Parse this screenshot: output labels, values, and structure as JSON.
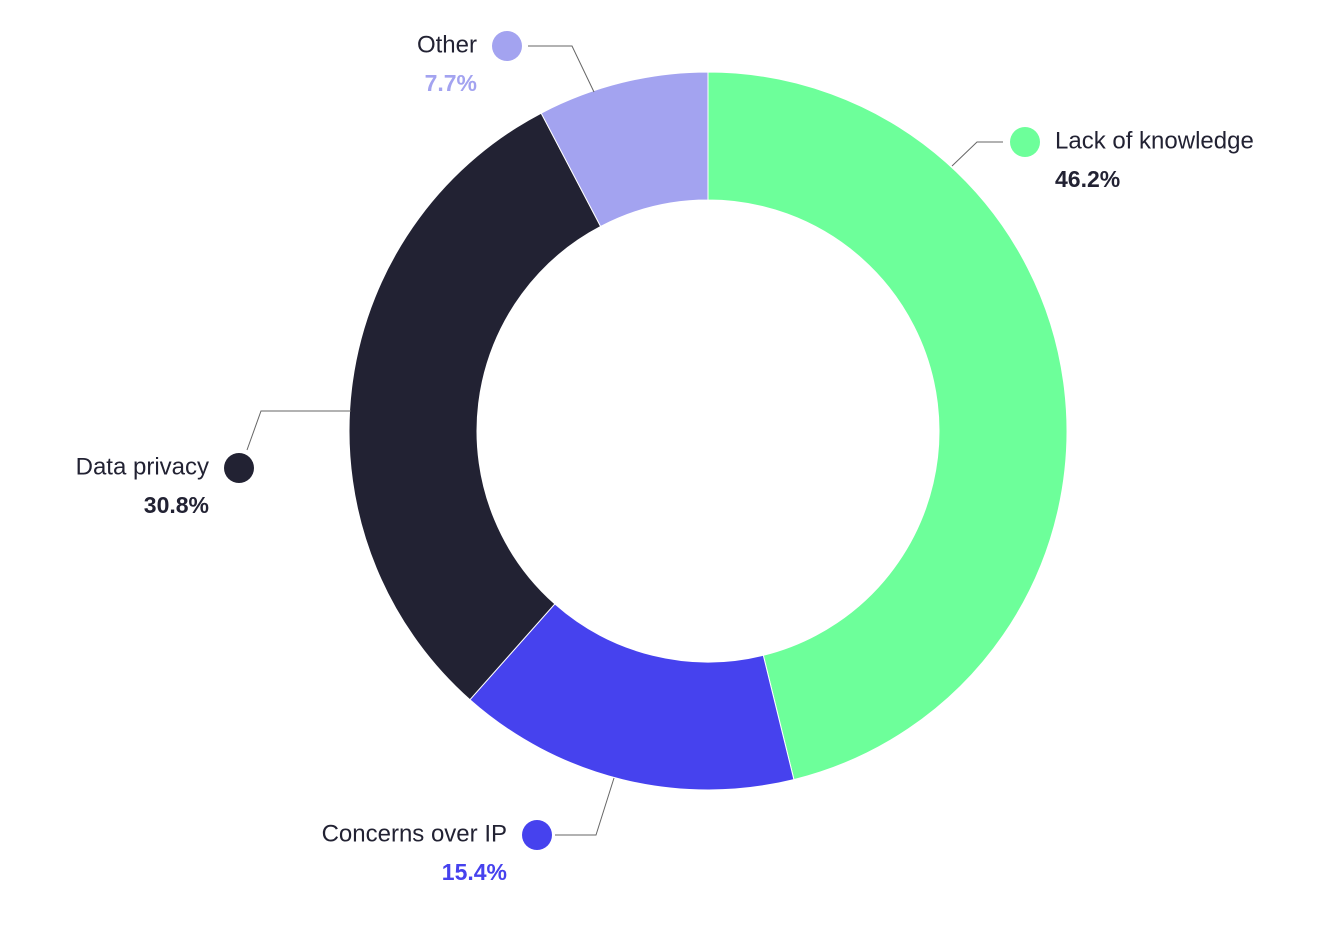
{
  "chart_data": {
    "type": "donut",
    "categories": [
      "Lack of knowledge",
      "Concerns over IP",
      "Data privacy",
      "Other"
    ],
    "values": [
      46.2,
      15.4,
      30.8,
      7.7
    ],
    "value_labels": [
      "46.2%",
      "15.4%",
      "30.8%",
      "7.7%"
    ],
    "colors": [
      "#6dff9a",
      "#4642ee",
      "#222233",
      "#a3a3f0"
    ],
    "value_label_colors": [
      "#222233",
      "#4642ee",
      "#222233",
      "#a3a3f0"
    ]
  }
}
